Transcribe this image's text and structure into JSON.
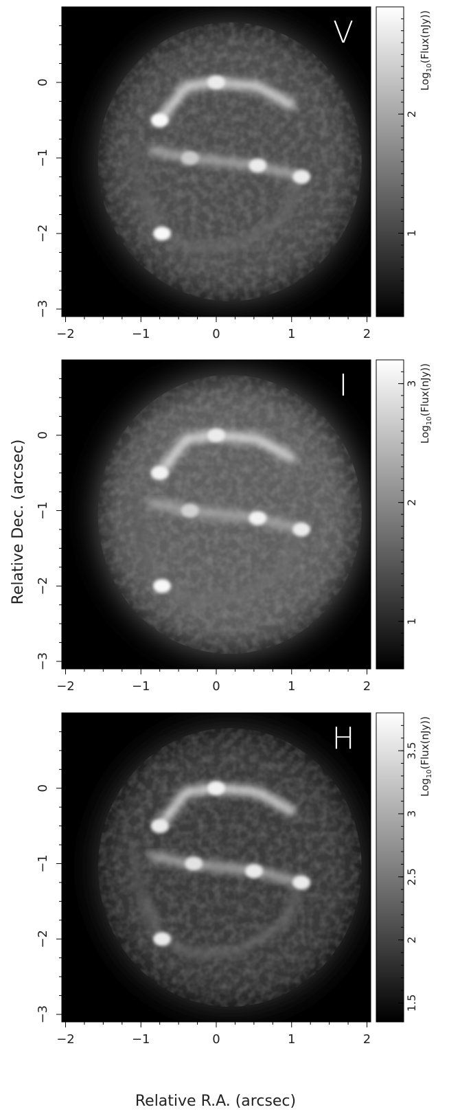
{
  "figure": {
    "ylabel": "Relative Dec. (arcsec)",
    "xlabel": "Relative R.A. (arcsec)"
  },
  "chart_data": [
    {
      "type": "heatmap",
      "band_label": "V",
      "colorbar_label": "Log10(Flux(nJy))",
      "colorbar_label_main": "Log",
      "colorbar_label_sub": "10",
      "colorbar_label_rest": "(Flux(nJy))",
      "colorscale": "grayscale",
      "xlim": [
        -2.05,
        2.05
      ],
      "ylim": [
        -3.1,
        1.0
      ],
      "xticks": [
        -2,
        -1,
        0,
        1,
        2
      ],
      "xtick_labels": [
        "−2",
        "−1",
        "0",
        "1",
        "2"
      ],
      "yticks": [
        -3,
        -2,
        -1,
        0
      ],
      "ytick_labels": [
        "−3",
        "−2",
        "−1",
        "0"
      ],
      "cbar_range": [
        0.3,
        2.9
      ],
      "cbar_ticks": [
        1,
        2
      ],
      "cbar_tick_labels": [
        "1",
        "2"
      ],
      "sources": [
        {
          "x": 0.0,
          "y": 0.0,
          "value": 2.6
        },
        {
          "x": -0.75,
          "y": -0.5,
          "value": 2.8
        },
        {
          "x": 0.55,
          "y": -1.1,
          "value": 2.6
        },
        {
          "x": 1.13,
          "y": -1.25,
          "value": 2.6
        },
        {
          "x": -0.35,
          "y": -1.0,
          "value": 2.1
        },
        {
          "x": -0.72,
          "y": -2.0,
          "value": 2.8
        }
      ]
    },
    {
      "type": "heatmap",
      "band_label": "I",
      "colorbar_label": "Log10(Flux(nJy))",
      "colorbar_label_main": "Log",
      "colorbar_label_sub": "10",
      "colorbar_label_rest": "(Flux(nJy))",
      "colorscale": "grayscale",
      "xlim": [
        -2.05,
        2.05
      ],
      "ylim": [
        -3.1,
        1.0
      ],
      "xticks": [
        -2,
        -1,
        0,
        1,
        2
      ],
      "xtick_labels": [
        "−2",
        "−1",
        "0",
        "1",
        "2"
      ],
      "yticks": [
        -3,
        -2,
        -1,
        0
      ],
      "ytick_labels": [
        "−3",
        "−2",
        "−1",
        "0"
      ],
      "cbar_range": [
        0.6,
        3.2
      ],
      "cbar_ticks": [
        1,
        2,
        3
      ],
      "cbar_tick_labels": [
        "1",
        "2",
        "3"
      ],
      "sources": [
        {
          "x": 0.0,
          "y": 0.0,
          "value": 2.9
        },
        {
          "x": -0.75,
          "y": -0.5,
          "value": 3.0
        },
        {
          "x": 0.55,
          "y": -1.1,
          "value": 3.0
        },
        {
          "x": 1.13,
          "y": -1.25,
          "value": 2.9
        },
        {
          "x": -0.35,
          "y": -1.0,
          "value": 2.5
        },
        {
          "x": -0.72,
          "y": -2.0,
          "value": 3.1
        }
      ]
    },
    {
      "type": "heatmap",
      "band_label": "H",
      "colorbar_label": "Log10(Flux(nJy))",
      "colorbar_label_main": "Log",
      "colorbar_label_sub": "10",
      "colorbar_label_rest": "(Flux(nJy))",
      "colorscale": "grayscale",
      "xlim": [
        -2.05,
        2.05
      ],
      "ylim": [
        -3.1,
        1.0
      ],
      "xticks": [
        -2,
        -1,
        0,
        1,
        2
      ],
      "xtick_labels": [
        "−2",
        "−1",
        "0",
        "1",
        "2"
      ],
      "yticks": [
        -3,
        -2,
        -1,
        0
      ],
      "ytick_labels": [
        "−3",
        "−2",
        "−1",
        "0"
      ],
      "cbar_range": [
        1.35,
        3.8
      ],
      "cbar_ticks": [
        1.5,
        2,
        2.5,
        3,
        3.5
      ],
      "cbar_tick_labels": [
        "1.5",
        "2",
        "2.5",
        "3",
        "3.5"
      ],
      "sources": [
        {
          "x": 0.0,
          "y": 0.0,
          "value": 3.6
        },
        {
          "x": -0.75,
          "y": -0.5,
          "value": 3.5
        },
        {
          "x": 0.5,
          "y": -1.1,
          "value": 3.5
        },
        {
          "x": 1.13,
          "y": -1.25,
          "value": 3.5
        },
        {
          "x": -0.3,
          "y": -1.0,
          "value": 3.4
        },
        {
          "x": -0.72,
          "y": -2.0,
          "value": 3.5
        }
      ]
    }
  ]
}
